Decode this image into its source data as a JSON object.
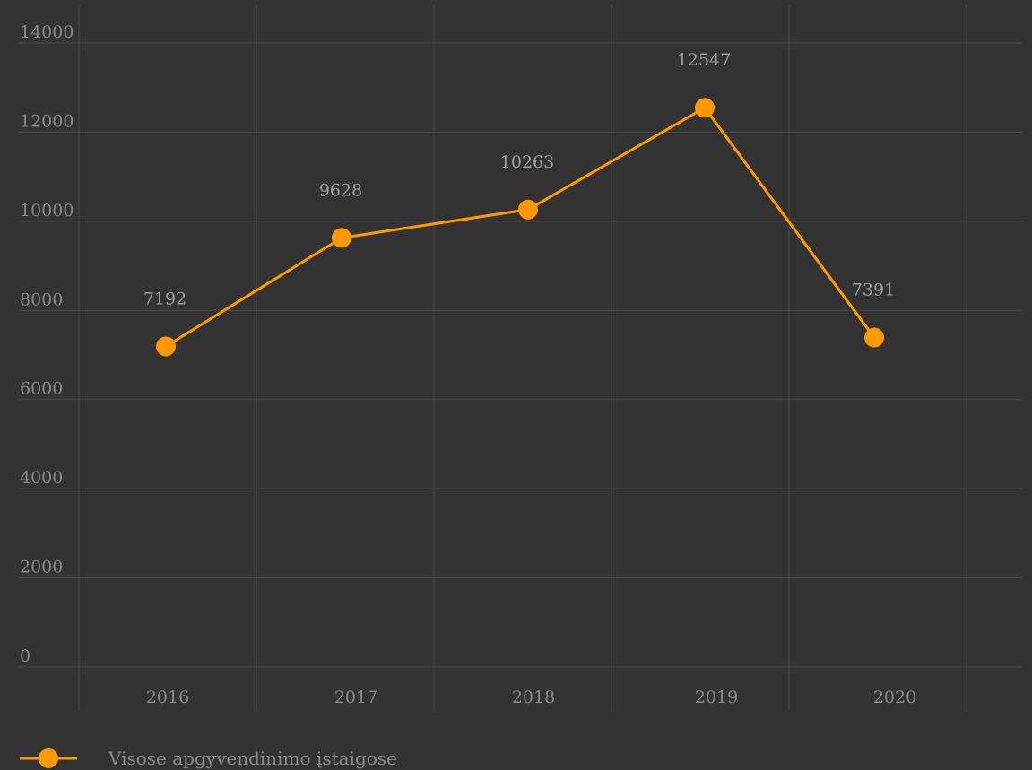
{
  "chart_data": {
    "type": "line",
    "title": "",
    "xlabel": "",
    "ylabel": "",
    "categories": [
      "2016",
      "2017",
      "2018",
      "2019",
      "2020"
    ],
    "series": [
      {
        "name": "Visose apgyvendinimo įstaigose",
        "values": [
          7192,
          9628,
          10263,
          12547,
          7391
        ],
        "data_labels": [
          "7192",
          "9628",
          "10263",
          "12547",
          "7391"
        ],
        "color": "#ff9900"
      }
    ],
    "y_ticks": [
      "0",
      "2000",
      "4000",
      "6000",
      "8000",
      "10000",
      "12000",
      "14000"
    ],
    "ylim": [
      0,
      14000
    ],
    "grid": true,
    "legend_position": "bottom-left"
  },
  "colors": {
    "background": "#333333",
    "grid": "#4a4a4a",
    "series": "#ff9900",
    "text": "#8a8a8a"
  }
}
